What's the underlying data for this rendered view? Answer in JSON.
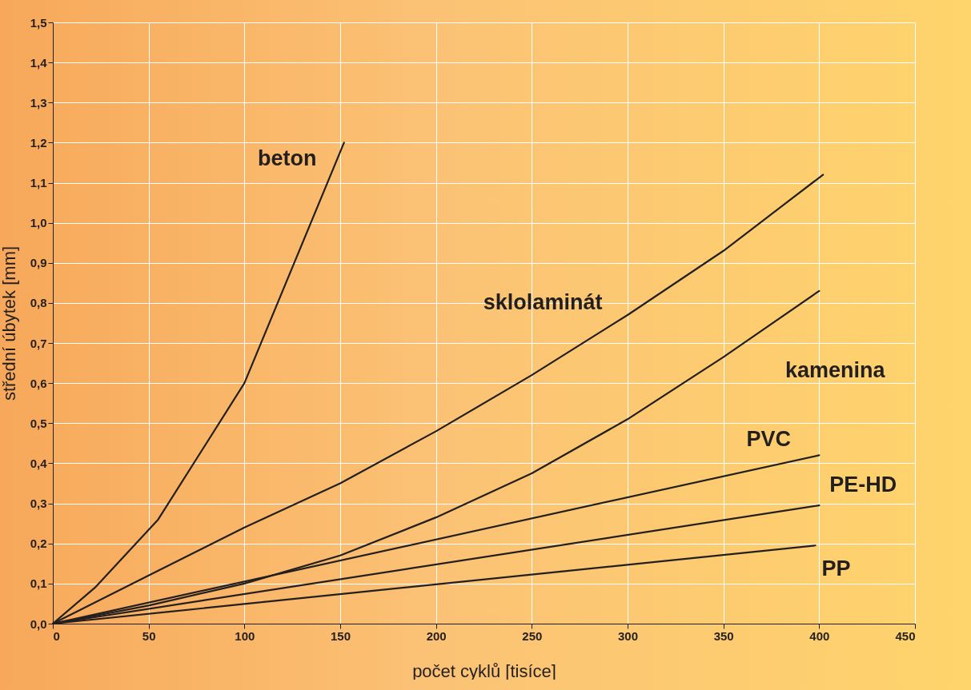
{
  "chart_data": {
    "type": "line",
    "xlabel": "počet cyklů [tisíce]",
    "ylabel": "střední úbytek [mm]",
    "xlim": [
      0,
      450
    ],
    "ylim": [
      0,
      1.5
    ],
    "xticks": [
      0,
      50,
      100,
      150,
      200,
      250,
      300,
      350,
      400,
      450
    ],
    "yticks": [
      {
        "value": 0,
        "label": "0,0"
      },
      {
        "value": 0.1,
        "label": "0,1"
      },
      {
        "value": 0.2,
        "label": "0,2"
      },
      {
        "value": 0.3,
        "label": "0,3"
      },
      {
        "value": 0.4,
        "label": "0,4"
      },
      {
        "value": 0.5,
        "label": "0,5"
      },
      {
        "value": 0.6,
        "label": "0,6"
      },
      {
        "value": 0.7,
        "label": "0,7"
      },
      {
        "value": 0.8,
        "label": "0,8"
      },
      {
        "value": 0.9,
        "label": "0,9"
      },
      {
        "value": 1.0,
        "label": "1,0"
      },
      {
        "value": 1.1,
        "label": "1,1"
      },
      {
        "value": 1.2,
        "label": "1,2"
      },
      {
        "value": 1.3,
        "label": "1,3"
      },
      {
        "value": 1.4,
        "label": "1,4"
      },
      {
        "value": 1.5,
        "label": "1,5"
      }
    ],
    "grid": true,
    "marker": "none",
    "line_style": "solid",
    "series": [
      {
        "name": "beton",
        "color": "#231f20",
        "x": [
          0,
          22,
          55,
          100,
          152
        ],
        "values": [
          0,
          0.09,
          0.26,
          0.6,
          1.2
        ]
      },
      {
        "name": "sklolaminát",
        "color": "#231f20",
        "x": [
          0,
          50,
          100,
          150,
          200,
          250,
          300,
          350,
          402
        ],
        "values": [
          0,
          0.12,
          0.24,
          0.35,
          0.48,
          0.62,
          0.77,
          0.93,
          1.12
        ]
      },
      {
        "name": "kamenina",
        "color": "#231f20",
        "x": [
          0,
          50,
          100,
          150,
          200,
          250,
          300,
          350,
          400
        ],
        "values": [
          0,
          0.045,
          0.1,
          0.17,
          0.265,
          0.375,
          0.51,
          0.665,
          0.83
        ]
      },
      {
        "name": "PVC",
        "color": "#231f20",
        "x": [
          0,
          400
        ],
        "values": [
          0,
          0.42
        ]
      },
      {
        "name": "PE-HD",
        "color": "#231f20",
        "x": [
          0,
          400
        ],
        "values": [
          0,
          0.295
        ]
      },
      {
        "name": "PP",
        "color": "#231f20",
        "x": [
          0,
          398
        ],
        "values": [
          0,
          0.195
        ]
      }
    ]
  }
}
